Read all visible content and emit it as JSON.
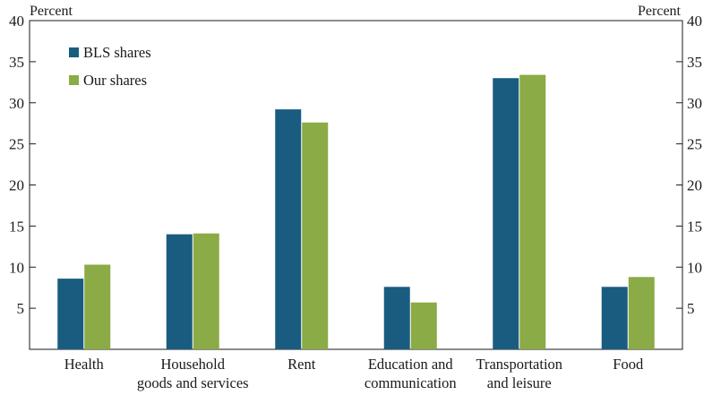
{
  "chart_data": {
    "type": "bar",
    "y_unit_left": "Percent",
    "y_unit_right": "Percent",
    "ylim": [
      0,
      40
    ],
    "yticks": [
      5,
      10,
      15,
      20,
      25,
      30,
      35,
      40
    ],
    "grid": false,
    "legend_position": "top-left",
    "categories": [
      [
        "Health"
      ],
      [
        "Household",
        "goods and services"
      ],
      [
        "Rent"
      ],
      [
        "Education and",
        "communication"
      ],
      [
        "Transportation",
        "and leisure"
      ],
      [
        "Food"
      ]
    ],
    "series": [
      {
        "name": "BLS shares",
        "color": "#1a5c80",
        "values": [
          8.6,
          14.0,
          29.2,
          7.6,
          33.0,
          7.6
        ]
      },
      {
        "name": "Our shares",
        "color": "#8aab45",
        "values": [
          10.3,
          14.1,
          27.6,
          5.7,
          33.4,
          8.8
        ]
      }
    ]
  }
}
